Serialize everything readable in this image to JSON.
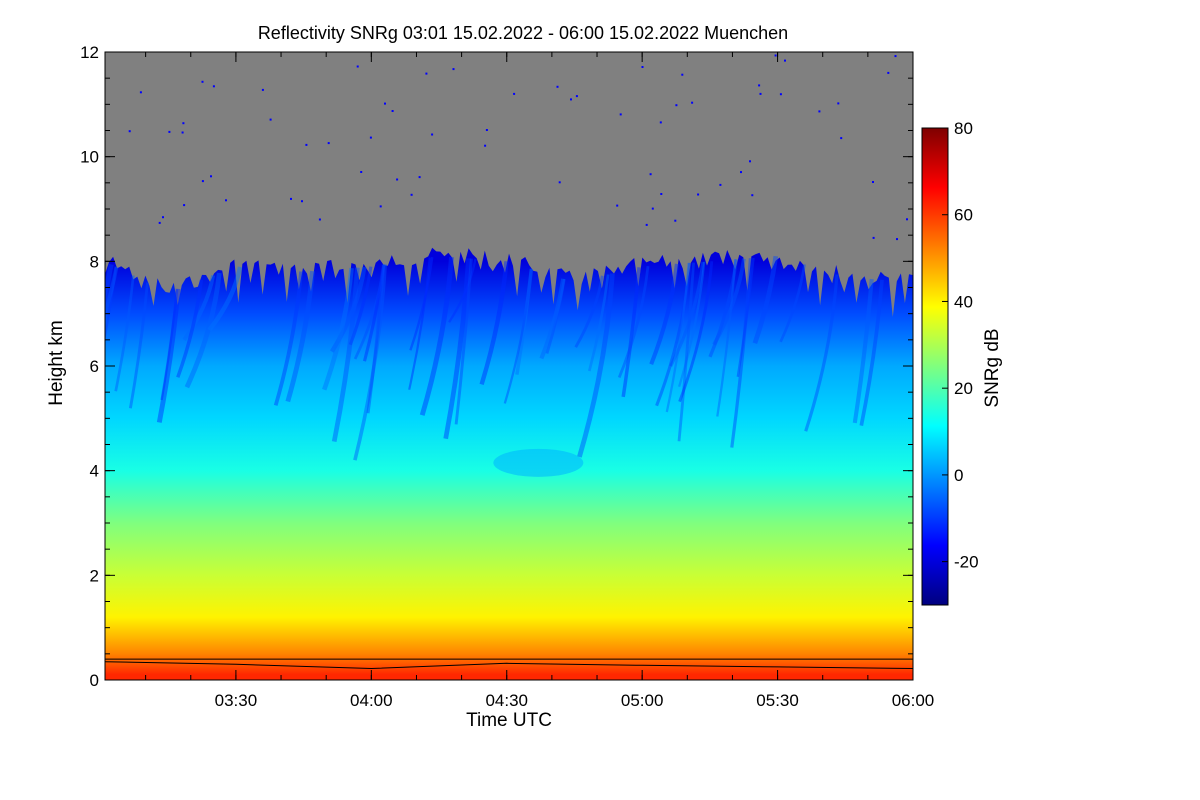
{
  "chart_data": {
    "type": "heatmap",
    "title": "Reflectivity SNRg   03:01 15.02.2022 - 06:00 15.02.2022 Muenchen",
    "xlabel": "Time UTC",
    "ylabel": "Height km",
    "colorbar_label": "SNRg dB",
    "x_range": [
      "03:01",
      "06:00"
    ],
    "x_ticks": [
      "03:30",
      "04:00",
      "04:30",
      "05:00",
      "05:30",
      "06:00"
    ],
    "y_range": [
      0,
      12
    ],
    "y_ticks": [
      0,
      2,
      4,
      6,
      8,
      10,
      12
    ],
    "colorbar_range": [
      -30,
      80
    ],
    "colorbar_ticks": [
      -20,
      0,
      20,
      40,
      60,
      80
    ],
    "no_signal_color": "#808080",
    "colormap": [
      "#00007f",
      "#0000ff",
      "#007fff",
      "#00ffff",
      "#7fff7f",
      "#ffff00",
      "#ff7f00",
      "#ff0000",
      "#7f0000"
    ],
    "cloud_top_profile": {
      "x": [
        "03:01",
        "03:15",
        "03:30",
        "03:45",
        "04:00",
        "04:15",
        "04:30",
        "04:45",
        "05:00",
        "05:15",
        "05:30",
        "05:45",
        "06:00"
      ],
      "height_km": [
        8.2,
        7.6,
        8.1,
        8.0,
        8.1,
        8.3,
        8.2,
        7.8,
        8.1,
        8.2,
        8.3,
        7.9,
        7.8
      ]
    },
    "snr_profile_db": [
      {
        "height_km": 0.1,
        "snr_db": 62
      },
      {
        "height_km": 0.5,
        "snr_db": 52
      },
      {
        "height_km": 1.2,
        "snr_db": 40
      },
      {
        "height_km": 2.0,
        "snr_db": 33
      },
      {
        "height_km": 3.0,
        "snr_db": 25
      },
      {
        "height_km": 4.0,
        "snr_db": 14
      },
      {
        "height_km": 5.0,
        "snr_db": 7
      },
      {
        "height_km": 6.0,
        "snr_db": 2
      },
      {
        "height_km": 7.0,
        "snr_db": -8
      },
      {
        "height_km": 8.0,
        "snr_db": -20
      }
    ],
    "boundary_line_km": 0.4,
    "boundary_profile": {
      "x": [
        "03:01",
        "03:30",
        "04:00",
        "04:30",
        "05:00",
        "05:30",
        "06:00"
      ],
      "height_km": [
        0.35,
        0.3,
        0.22,
        0.32,
        0.28,
        0.25,
        0.22
      ]
    }
  }
}
